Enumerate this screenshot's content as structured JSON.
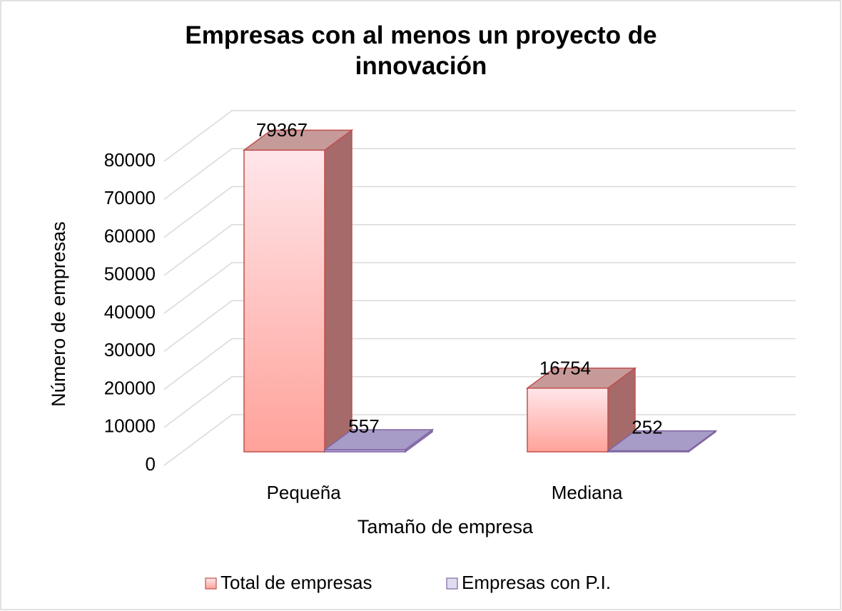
{
  "chart_data": {
    "type": "bar3d",
    "title": "Empresas con al menos un proyecto de innovación",
    "categories": [
      "Pequeña",
      "Mediana"
    ],
    "series": [
      {
        "name": "Total de empresas",
        "color": "#ff9f98",
        "values": [
          79367,
          16754
        ]
      },
      {
        "name": "Empresas con P.I.",
        "color": "#b4a7d6",
        "values": [
          557,
          252
        ]
      }
    ],
    "x_label": "Tamaño de empresa",
    "y_label": "Número de empresas",
    "ylim": [
      0,
      80000
    ],
    "yticks": [
      0,
      10000,
      20000,
      30000,
      40000,
      50000,
      60000,
      70000,
      80000
    ],
    "grid": true,
    "legend": "bottom"
  }
}
